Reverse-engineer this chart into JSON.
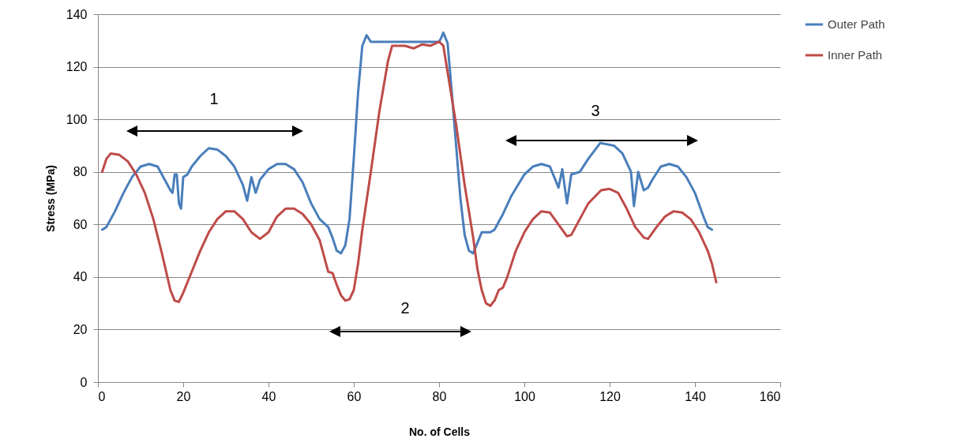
{
  "chart_data": {
    "type": "line",
    "xlabel": "No. of Cells",
    "ylabel": "Stress (MPa)",
    "xlim": [
      0,
      160
    ],
    "xticks": [
      0,
      20,
      40,
      60,
      80,
      100,
      120,
      140,
      160
    ],
    "ylim": [
      0,
      140
    ],
    "yticks": [
      0,
      20,
      40,
      60,
      80,
      100,
      120,
      140
    ],
    "grid": "y",
    "legend": "right",
    "marker": "none",
    "line_style": "solid",
    "annotations": [
      "1",
      "2",
      "3"
    ],
    "series": [
      {
        "name": "Outer Path",
        "color": "#4a7ebb",
        "x": [
          1,
          2,
          4,
          6,
          8,
          10,
          12,
          14,
          16,
          17,
          17.5,
          18,
          18.5,
          19,
          19.5,
          20,
          21,
          22,
          24,
          26,
          28,
          30,
          32,
          34,
          35,
          36,
          37,
          38,
          40,
          42,
          44,
          46,
          48,
          50,
          51,
          52,
          54,
          55,
          56,
          57,
          58,
          59,
          60,
          61,
          62,
          63,
          64,
          70,
          80,
          80.5,
          81,
          82,
          83,
          84,
          85,
          86,
          87,
          88,
          89,
          90,
          91,
          92,
          93,
          95,
          97,
          100,
          102,
          104,
          106,
          108,
          108.9,
          110,
          111,
          113,
          115,
          117.8,
          121,
          123,
          125,
          125.7,
          126.7,
          128,
          129,
          130,
          132,
          134,
          136,
          138,
          140,
          142,
          143,
          144
        ],
        "values": [
          58,
          59,
          65,
          72,
          78,
          82,
          83,
          82,
          76,
          73,
          72,
          79,
          79,
          68,
          66,
          78,
          79,
          82,
          86,
          89,
          88.5,
          86,
          82,
          75,
          69,
          78,
          72,
          77,
          81,
          83,
          83,
          81,
          76,
          68,
          65,
          62,
          59,
          55,
          50,
          49,
          52,
          62,
          85,
          110,
          128,
          132,
          129.5,
          129.5,
          129.5,
          131,
          133,
          129,
          110,
          90,
          70,
          56,
          50,
          49,
          53,
          57,
          57,
          57,
          58,
          64,
          71,
          79,
          82,
          83,
          82,
          74,
          81,
          68,
          79,
          80,
          85,
          91,
          90,
          87,
          80,
          67,
          80,
          73,
          74,
          77,
          82,
          83,
          82,
          78,
          72,
          63,
          59,
          58
        ]
      },
      {
        "name": "Inner Path",
        "color": "#be4b48",
        "x": [
          1,
          2,
          3,
          5,
          7,
          9,
          11,
          13,
          15,
          17,
          18,
          19,
          20,
          22,
          24,
          26,
          28,
          30,
          32,
          34,
          36,
          38,
          40,
          42,
          44,
          46,
          48,
          50,
          52,
          53,
          54,
          55,
          56,
          57,
          58,
          59,
          60,
          61,
          62,
          64,
          66,
          68,
          69,
          70,
          72,
          74,
          76,
          78,
          80,
          81,
          82,
          84,
          86,
          88,
          89,
          90,
          91,
          92,
          93,
          94,
          95,
          96,
          98,
          100,
          102,
          104,
          106,
          108,
          110,
          111,
          113,
          115,
          118,
          120,
          122,
          124,
          126,
          128,
          129,
          131,
          133,
          135,
          137,
          139,
          141,
          143,
          144,
          145
        ],
        "values": [
          80,
          85,
          87,
          86.5,
          84,
          79,
          72,
          62,
          49,
          35,
          31,
          30.5,
          34,
          42,
          50,
          57,
          62,
          65,
          65,
          62,
          57,
          54.5,
          57,
          63,
          66,
          66,
          64,
          60,
          54,
          48,
          42,
          41.5,
          37,
          33,
          31,
          31.5,
          35,
          45,
          58,
          80,
          103,
          122,
          128,
          128,
          128,
          127,
          128.5,
          128,
          129.5,
          128,
          118,
          98,
          75,
          55,
          43,
          35,
          30,
          29,
          31,
          35,
          36,
          40,
          50,
          57,
          62,
          65,
          64.5,
          60,
          55.5,
          56,
          62,
          68,
          73,
          73.5,
          72,
          66,
          59,
          55,
          54.5,
          59,
          63,
          65,
          64.5,
          62,
          57,
          50,
          45,
          38
        ]
      }
    ]
  }
}
